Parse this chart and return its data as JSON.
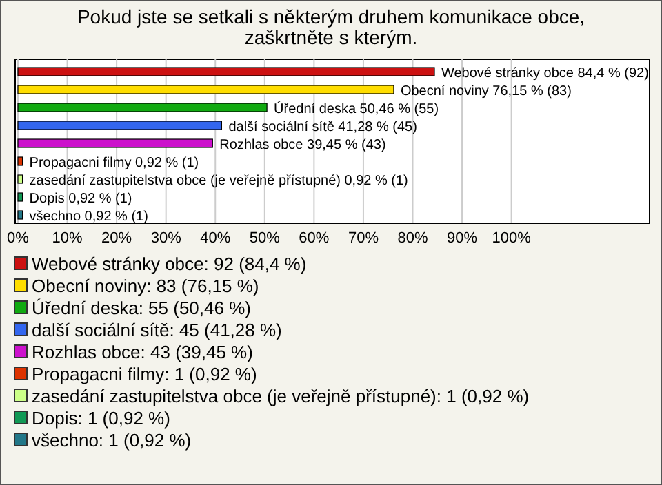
{
  "chart_data": {
    "type": "bar",
    "orientation": "horizontal",
    "title": "Pokud jste se setkali s některým druhem komunikace obce, zaškrtněte s kterým.",
    "categories": [
      "Webové stránky obce",
      "Obecní noviny",
      "Úřední deska",
      "další sociální sítě",
      "Rozhlas obce",
      "Propagacni filmy",
      "zasedání zastupitelstva obce (je veřejně přístupné)",
      "Dopis",
      "všechno"
    ],
    "values": [
      84.4,
      76.15,
      50.46,
      41.28,
      39.45,
      0.92,
      0.92,
      0.92,
      0.92
    ],
    "value_labels": [
      "84,4 % (92)",
      "76,15 % (83)",
      "50,46 % (55)",
      "41,28 % (45)",
      "39,45 % (43)",
      "0,92 % (1)",
      "0,92 % (1)",
      "0,92 % (1)",
      "0,92 % (1)"
    ],
    "colors": [
      "#cc1111",
      "#ffdd00",
      "#11aa11",
      "#3366ee",
      "#cc11cc",
      "#dd3300",
      "#ccff88",
      "#119955",
      "#227788"
    ],
    "xlim": [
      0,
      128
    ],
    "xticks": [
      {
        "value": 0,
        "label": "0%"
      },
      {
        "value": 10,
        "label": "10%"
      },
      {
        "value": 20,
        "label": "20%"
      },
      {
        "value": 30,
        "label": "30%"
      },
      {
        "value": 40,
        "label": "40%"
      },
      {
        "value": 50,
        "label": "50%"
      },
      {
        "value": 60,
        "label": "60%"
      },
      {
        "value": 70,
        "label": "70%"
      },
      {
        "value": 80,
        "label": "80%"
      },
      {
        "value": 90,
        "label": "90%"
      },
      {
        "value": 100,
        "label": "100%"
      }
    ],
    "grid": "x",
    "tick_labels": "x",
    "annotations": [
      "Webové stránky obce: 92 (84,4 %)",
      "Obecní noviny: 83 (76,15 %)",
      "Úřední deska: 55 (50,46 %)",
      "další sociální sítě: 45 (41,28 %)",
      "Rozhlas obce: 43 (39,45 %)",
      "Propagacni filmy: 1 (0,92 %)",
      "zasedání zastupitelstva obce (je veřejně přístupné): 1 (0,92 %)",
      "Dopis: 1 (0,92 %)",
      "všechno: 1 (0,92 %)"
    ]
  }
}
